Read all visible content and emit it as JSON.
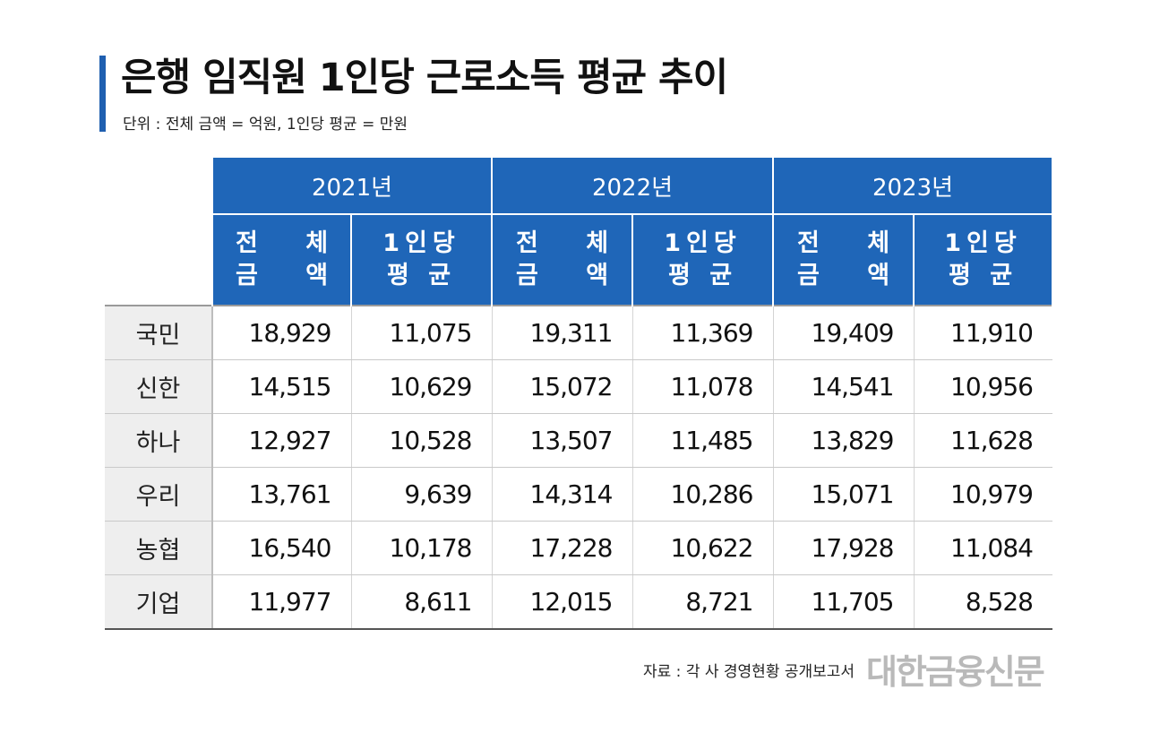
{
  "title": "은행 임직원 1인당 근로소득 평균 추이",
  "subtitle": "단위 : 전체 금액 = 억원, 1인당 평균 = 만원",
  "source": "자료 : 각 사 경영현황 공개보고서",
  "brand": "대한금융신문",
  "colors": {
    "header_blue": "#1f66b8",
    "title_bar": "#1f5fb0",
    "row_label_bg": "#eeeeee"
  },
  "chart_data": {
    "type": "table",
    "title": "은행 임직원 1인당 근로소득 평균 추이",
    "years": [
      "2021년",
      "2022년",
      "2023년"
    ],
    "sub_headers": [
      {
        "line1": "전 체",
        "line2": "금 액"
      },
      {
        "line1": "1인당",
        "line2": "평 균"
      }
    ],
    "rows": [
      {
        "bank": "국민",
        "values": [
          "18,929",
          "11,075",
          "19,311",
          "11,369",
          "19,409",
          "11,910"
        ]
      },
      {
        "bank": "신한",
        "values": [
          "14,515",
          "10,629",
          "15,072",
          "11,078",
          "14,541",
          "10,956"
        ]
      },
      {
        "bank": "하나",
        "values": [
          "12,927",
          "10,528",
          "13,507",
          "11,485",
          "13,829",
          "11,628"
        ]
      },
      {
        "bank": "우리",
        "values": [
          "13,761",
          "9,639",
          "14,314",
          "10,286",
          "15,071",
          "10,979"
        ]
      },
      {
        "bank": "농협",
        "values": [
          "16,540",
          "10,178",
          "17,228",
          "10,622",
          "17,928",
          "11,084"
        ]
      },
      {
        "bank": "기업",
        "values": [
          "11,977",
          "8,611",
          "12,015",
          "8,721",
          "11,705",
          "8,528"
        ]
      }
    ]
  }
}
